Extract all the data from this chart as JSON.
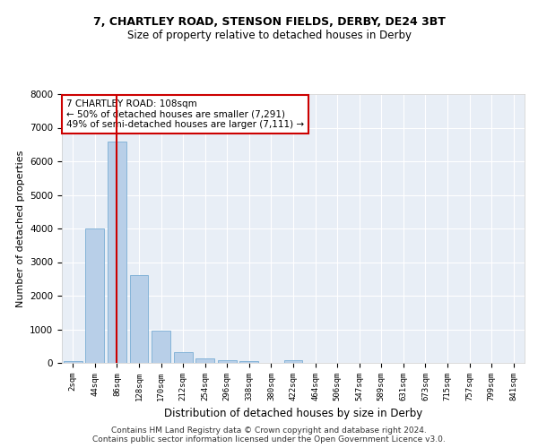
{
  "title1": "7, CHARTLEY ROAD, STENSON FIELDS, DERBY, DE24 3BT",
  "title2": "Size of property relative to detached houses in Derby",
  "xlabel": "Distribution of detached houses by size in Derby",
  "ylabel": "Number of detached properties",
  "footnote1": "Contains HM Land Registry data © Crown copyright and database right 2024.",
  "footnote2": "Contains public sector information licensed under the Open Government Licence v3.0.",
  "annotation_line1": "7 CHARTLEY ROAD: 108sqm",
  "annotation_line2": "← 50% of detached houses are smaller (7,291)",
  "annotation_line3": "49% of semi-detached houses are larger (7,111) →",
  "bar_color": "#b8cfe8",
  "bar_edge_color": "#7aadd4",
  "vline_color": "#cc0000",
  "annotation_box_edge_color": "#cc0000",
  "background_color": "#e8eef6",
  "grid_color": "#ffffff",
  "categories": [
    "2sqm",
    "44sqm",
    "86sqm",
    "128sqm",
    "170sqm",
    "212sqm",
    "254sqm",
    "296sqm",
    "338sqm",
    "380sqm",
    "422sqm",
    "464sqm",
    "506sqm",
    "547sqm",
    "589sqm",
    "631sqm",
    "673sqm",
    "715sqm",
    "757sqm",
    "799sqm",
    "841sqm"
  ],
  "values": [
    60,
    4000,
    6580,
    2620,
    960,
    320,
    130,
    90,
    60,
    0,
    70,
    0,
    0,
    0,
    0,
    0,
    0,
    0,
    0,
    0,
    0
  ],
  "vline_x": 2,
  "ylim": [
    0,
    8000
  ],
  "yticks": [
    0,
    1000,
    2000,
    3000,
    4000,
    5000,
    6000,
    7000,
    8000
  ]
}
